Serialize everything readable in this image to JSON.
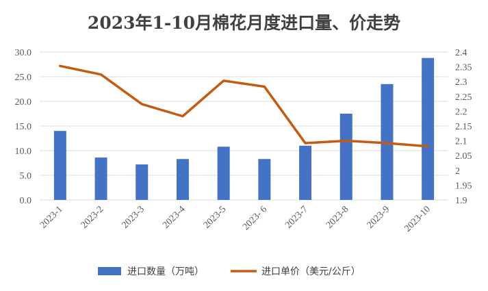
{
  "chart_data": {
    "type": "bar",
    "title": "2023年1-10月棉花月度进口量、价走势",
    "categories": [
      "2023-1",
      "2023-2",
      "2023-3",
      "2023-4",
      "2023-5",
      "2023- 6",
      "2023-7",
      "2023-8",
      "2023-9",
      "2023-10"
    ],
    "series": [
      {
        "name": "进口数量（万吨）",
        "type": "bar",
        "axis": "left",
        "color": "#4472C4",
        "values": [
          14.0,
          8.6,
          7.2,
          8.3,
          10.8,
          8.3,
          11.0,
          17.5,
          23.5,
          28.8
        ]
      },
      {
        "name": "进口单价（美元/公斤）",
        "type": "line",
        "axis": "right",
        "color": "#C55A11",
        "values": [
          2.353,
          2.324,
          2.224,
          2.183,
          2.303,
          2.283,
          2.092,
          2.1,
          2.092,
          2.081
        ]
      }
    ],
    "y_left": {
      "min": 0,
      "max": 30,
      "step": 5,
      "ticks": [
        "0.0",
        "5.0",
        "10.0",
        "15.0",
        "20.0",
        "25.0",
        "30.0"
      ]
    },
    "y_right": {
      "min": 1.9,
      "max": 2.4,
      "step": 0.05,
      "ticks": [
        "1.9",
        "1.95",
        "2",
        "2.05",
        "2.1",
        "2.15",
        "2.2",
        "2.25",
        "2.3",
        "2.35",
        "2.4"
      ]
    },
    "grid": true,
    "legend": "bottom"
  }
}
